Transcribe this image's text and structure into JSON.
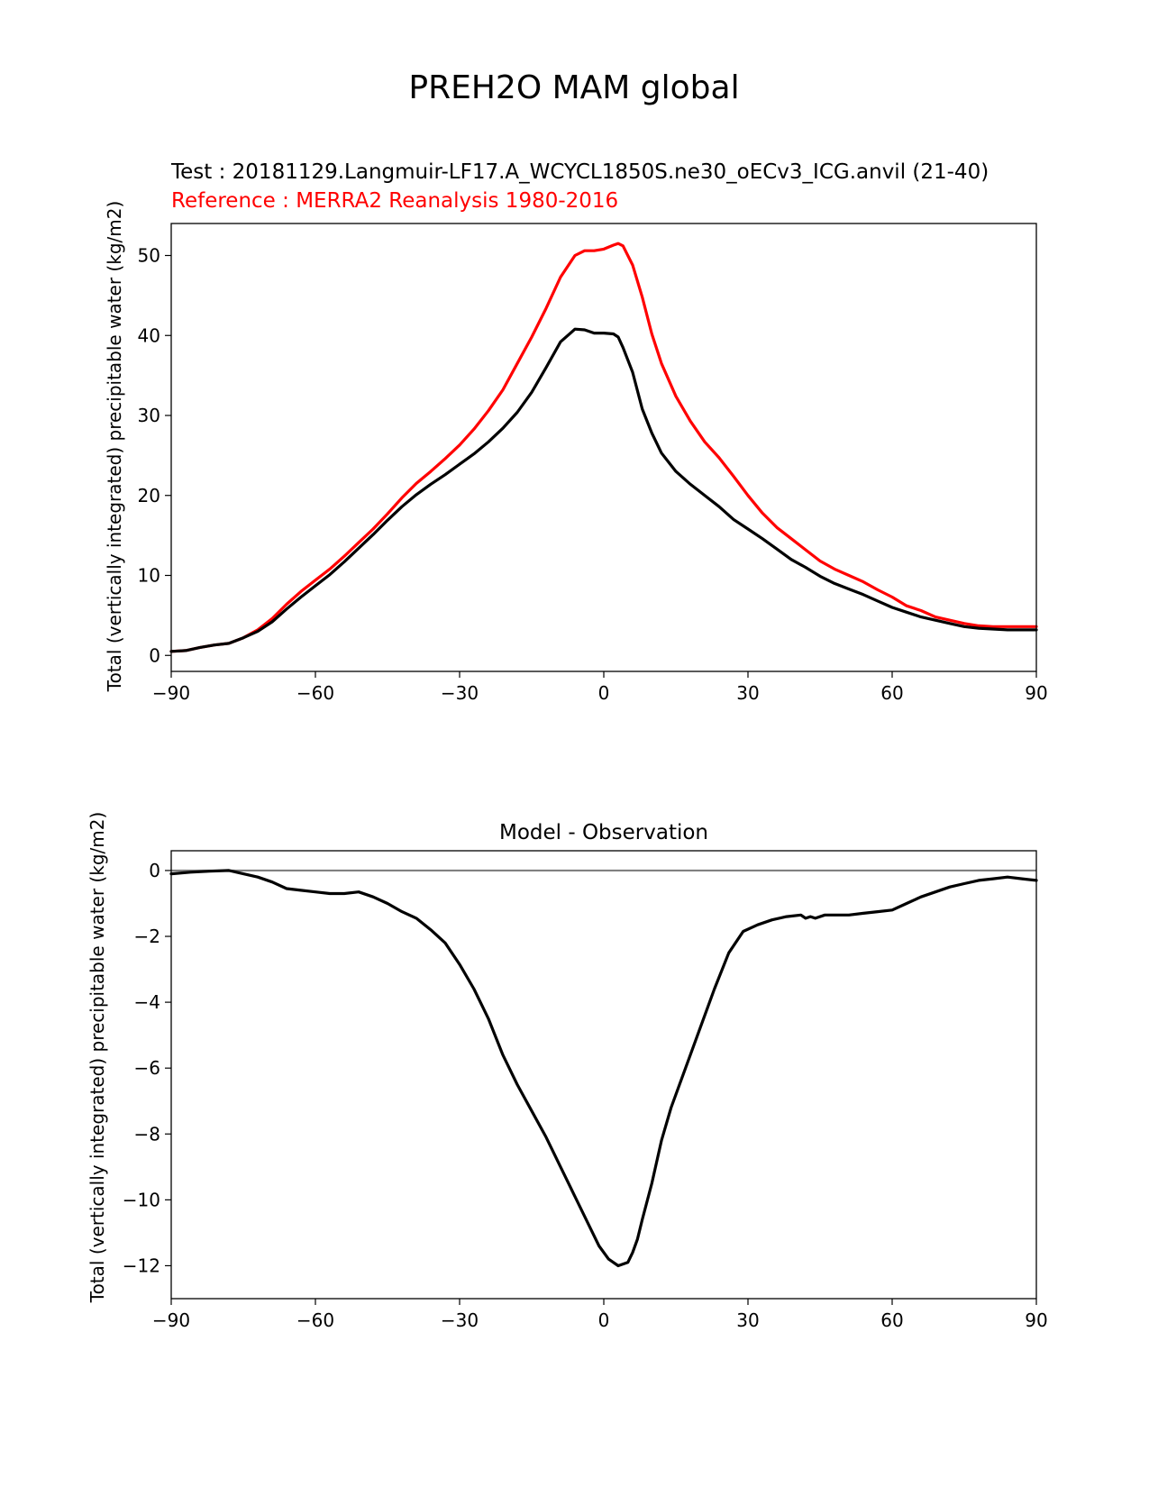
{
  "figure_title": "PREH2O MAM global",
  "chart_data": [
    {
      "type": "line",
      "title_test": "Test : 20181129.Langmuir-LF17.A_WCYCL1850S.ne30_oECv3_ICG.anvil (21-40)",
      "title_reference": "Reference : MERRA2 Reanalysis 1980-2016",
      "xlabel": "",
      "ylabel": "Total (vertically integrated) precipitable water (kg/m2)",
      "xlim": [
        -90,
        90
      ],
      "ylim": [
        -2,
        54
      ],
      "xticks": [
        -90,
        -60,
        -30,
        0,
        30,
        60,
        90
      ],
      "xtick_labels": [
        "−90",
        "−60",
        "−30",
        "0",
        "30",
        "60",
        "90"
      ],
      "yticks": [
        0,
        10,
        20,
        30,
        40,
        50
      ],
      "ytick_labels": [
        "0",
        "10",
        "20",
        "30",
        "40",
        "50"
      ],
      "series": [
        {
          "name": "Reference",
          "color": "#ff0000",
          "x": [
            -90,
            -87,
            -84,
            -81,
            -78,
            -75,
            -72,
            -69,
            -66,
            -63,
            -60,
            -57,
            -54,
            -51,
            -48,
            -45,
            -42,
            -39,
            -36,
            -33,
            -30,
            -27,
            -24,
            -21,
            -18,
            -15,
            -12,
            -9,
            -6,
            -4,
            -2,
            0,
            2,
            3,
            4,
            6,
            8,
            10,
            12,
            15,
            18,
            21,
            24,
            27,
            30,
            33,
            36,
            39,
            42,
            45,
            48,
            51,
            54,
            57,
            60,
            63,
            66,
            69,
            72,
            75,
            78,
            81,
            84,
            87,
            90
          ],
          "y": [
            0.5,
            0.6,
            1.0,
            1.3,
            1.5,
            2.2,
            3.2,
            4.6,
            6.4,
            8.0,
            9.4,
            10.8,
            12.4,
            14.1,
            15.8,
            17.7,
            19.7,
            21.5,
            23.0,
            24.6,
            26.3,
            28.3,
            30.6,
            33.2,
            36.5,
            39.8,
            43.4,
            47.3,
            50.0,
            50.6,
            50.6,
            50.8,
            51.3,
            51.5,
            51.2,
            48.8,
            44.8,
            40.2,
            36.5,
            32.4,
            29.3,
            26.7,
            24.7,
            22.4,
            20.0,
            17.8,
            16.0,
            14.6,
            13.2,
            11.8,
            10.8,
            10.0,
            9.2,
            8.2,
            7.3,
            6.2,
            5.6,
            4.8,
            4.4,
            4.0,
            3.7,
            3.6,
            3.6,
            3.6,
            3.6
          ]
        },
        {
          "name": "Test",
          "color": "#000000",
          "x": [
            -90,
            -87,
            -84,
            -81,
            -78,
            -75,
            -72,
            -69,
            -66,
            -63,
            -60,
            -57,
            -54,
            -51,
            -48,
            -45,
            -42,
            -39,
            -36,
            -33,
            -30,
            -27,
            -24,
            -21,
            -18,
            -15,
            -12,
            -9,
            -6,
            -4,
            -2,
            0,
            2,
            3,
            4,
            6,
            8,
            10,
            12,
            15,
            18,
            21,
            24,
            27,
            30,
            33,
            36,
            39,
            42,
            45,
            48,
            51,
            54,
            57,
            60,
            63,
            66,
            69,
            72,
            75,
            78,
            81,
            84,
            87,
            90
          ],
          "y": [
            0.5,
            0.6,
            1.0,
            1.3,
            1.5,
            2.2,
            3.0,
            4.2,
            5.8,
            7.3,
            8.7,
            10.1,
            11.7,
            13.4,
            15.1,
            16.9,
            18.6,
            20.1,
            21.4,
            22.6,
            23.9,
            25.2,
            26.7,
            28.4,
            30.4,
            32.9,
            36.0,
            39.2,
            40.8,
            40.7,
            40.3,
            40.3,
            40.2,
            39.8,
            38.5,
            35.4,
            30.8,
            27.8,
            25.3,
            23.0,
            21.4,
            20.0,
            18.6,
            17.0,
            15.8,
            14.6,
            13.3,
            12.0,
            11.0,
            9.9,
            9.0,
            8.3,
            7.6,
            6.8,
            6.0,
            5.4,
            4.8,
            4.4,
            4.0,
            3.6,
            3.4,
            3.3,
            3.2,
            3.2,
            3.2
          ]
        }
      ]
    },
    {
      "type": "line",
      "title": "Model - Observation",
      "xlabel": "",
      "ylabel": "Total (vertically integrated) precipitable water (kg/m2)",
      "xlim": [
        -90,
        90
      ],
      "ylim": [
        -13.0,
        0.6
      ],
      "xticks": [
        -90,
        -60,
        -30,
        0,
        30,
        60,
        90
      ],
      "xtick_labels": [
        "−90",
        "−60",
        "−30",
        "0",
        "30",
        "60",
        "90"
      ],
      "yticks": [
        0,
        -2,
        -4,
        -6,
        -8,
        -10,
        -12
      ],
      "ytick_labels": [
        "0",
        "−2",
        "−4",
        "−6",
        "−8",
        "−10",
        "−12"
      ],
      "zero_line": {
        "y": 0,
        "color": "#808080"
      },
      "series": [
        {
          "name": "Model - Observation",
          "color": "#000000",
          "x": [
            -90,
            -86,
            -82,
            -78,
            -75,
            -72,
            -69,
            -66,
            -63,
            -60,
            -57,
            -54,
            -51,
            -48,
            -45,
            -42,
            -39,
            -36,
            -33,
            -30,
            -27,
            -24,
            -21,
            -18,
            -15,
            -12,
            -9,
            -6,
            -3,
            -1,
            1,
            3,
            5,
            6,
            7,
            8,
            10,
            12,
            14,
            17,
            20,
            23,
            26,
            29,
            32,
            35,
            38,
            41,
            42,
            43,
            44,
            46,
            48,
            51,
            54,
            57,
            60,
            63,
            66,
            69,
            72,
            75,
            78,
            81,
            84,
            87,
            90
          ],
          "y": [
            -0.1,
            -0.05,
            -0.02,
            0.0,
            -0.1,
            -0.2,
            -0.35,
            -0.55,
            -0.6,
            -0.65,
            -0.7,
            -0.7,
            -0.65,
            -0.8,
            -1.0,
            -1.25,
            -1.45,
            -1.8,
            -2.2,
            -2.85,
            -3.6,
            -4.5,
            -5.6,
            -6.5,
            -7.3,
            -8.1,
            -9.0,
            -9.9,
            -10.8,
            -11.4,
            -11.8,
            -12.0,
            -11.9,
            -11.6,
            -11.2,
            -10.6,
            -9.5,
            -8.2,
            -7.2,
            -6.0,
            -4.8,
            -3.6,
            -2.5,
            -1.85,
            -1.65,
            -1.5,
            -1.4,
            -1.35,
            -1.45,
            -1.4,
            -1.45,
            -1.35,
            -1.35,
            -1.35,
            -1.3,
            -1.25,
            -1.2,
            -1.0,
            -0.8,
            -0.65,
            -0.5,
            -0.4,
            -0.3,
            -0.25,
            -0.2,
            -0.25,
            -0.3
          ]
        }
      ]
    }
  ]
}
